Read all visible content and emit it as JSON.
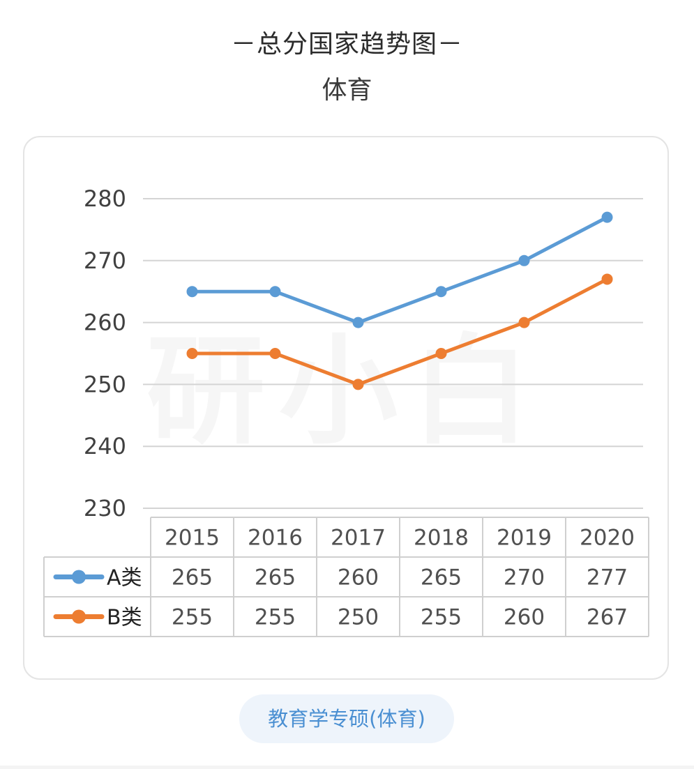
{
  "header": {
    "title": "－总分国家趋势图－",
    "subtitle": "体育"
  },
  "footer": {
    "tag_label": "教育学专硕(体育)"
  },
  "watermark": {
    "text": "研小白"
  },
  "chart_data": {
    "type": "line",
    "categories": [
      "2015",
      "2016",
      "2017",
      "2018",
      "2019",
      "2020"
    ],
    "series": [
      {
        "name": "A类",
        "values": [
          265,
          265,
          260,
          265,
          270,
          277
        ],
        "color": "#5b9bd5"
      },
      {
        "name": "B类",
        "values": [
          255,
          255,
          250,
          255,
          260,
          267
        ],
        "color": "#ed7d31"
      }
    ],
    "yticks": [
      280,
      270,
      260,
      250,
      240,
      230
    ],
    "ylim": [
      230,
      280
    ],
    "grid": true,
    "legend": "data-table",
    "data_table": true
  }
}
